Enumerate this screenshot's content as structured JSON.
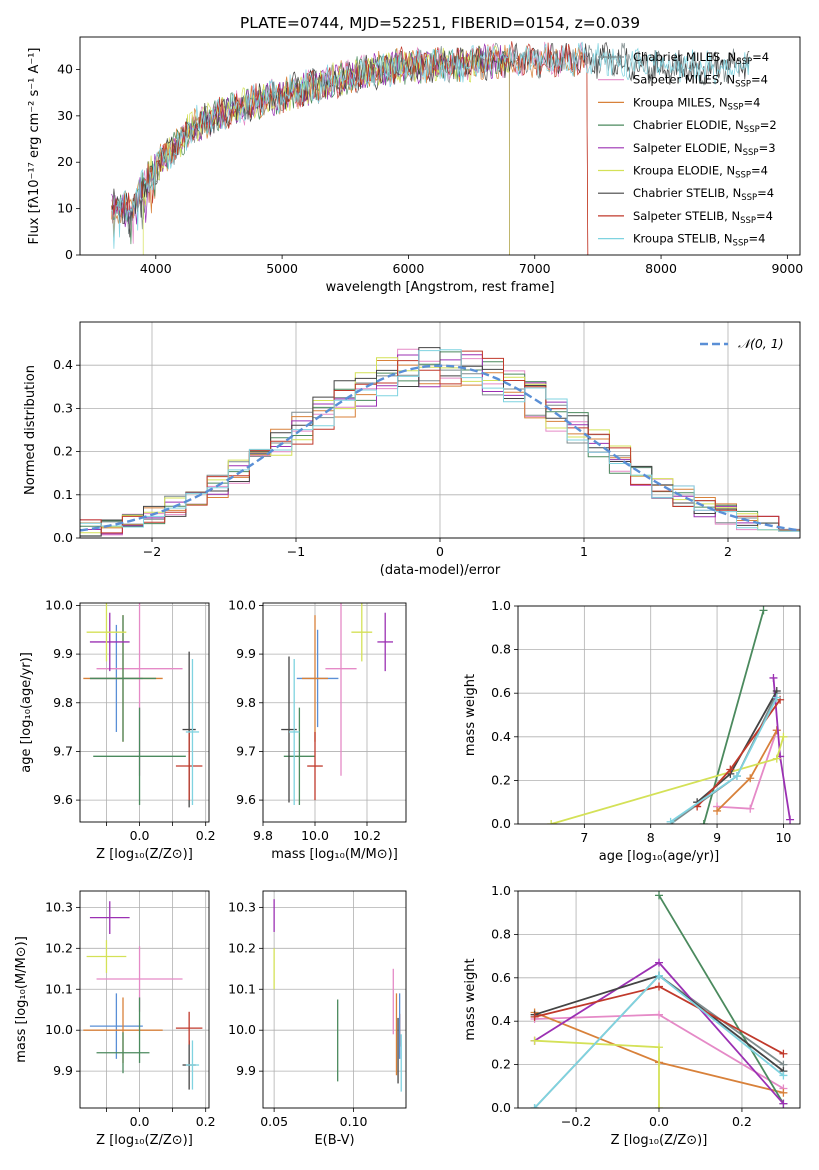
{
  "figure": {
    "title": "PLATE=0744, MJD=52251, FIBERID=0154, z=0.039"
  },
  "chart_data": [
    {
      "id": "spectrum",
      "type": "line",
      "xlabel": "wavelength [Angstrom, rest frame]",
      "ylabel": "Flux [fλ10⁻¹⁷ erg cm⁻² s⁻¹ A⁻¹]",
      "xlim": [
        3400,
        9100
      ],
      "ylim": [
        0,
        47
      ],
      "xticks": [
        4000,
        5000,
        6000,
        7000,
        8000,
        9000
      ],
      "yticks": [
        0,
        10,
        20,
        30,
        40
      ],
      "legend_position": "right",
      "series": [
        {
          "name": "Chabrier MILES, N_SSP=4",
          "color": "#7f8c8d",
          "start": 3650,
          "end": 8700
        },
        {
          "name": "Salpeter MILES, N_SSP=4",
          "color": "#e58ac7",
          "start": 3650,
          "end": 7420
        },
        {
          "name": "Kroupa MILES, N_SSP=4",
          "color": "#d8813a",
          "start": 3650,
          "end": 7420
        },
        {
          "name": "Chabrier ELODIE, N_SSP=2",
          "color": "#4b8a5e",
          "start": 3650,
          "end": 6800
        },
        {
          "name": "Salpeter ELODIE, N_SSP=3",
          "color": "#9b30b3",
          "start": 3650,
          "end": 6800
        },
        {
          "name": "Kroupa ELODIE, N_SSP=4",
          "color": "#d4e157",
          "start": 3900,
          "end": 6800
        },
        {
          "name": "Chabrier STELIB, N_SSP=4",
          "color": "#444444",
          "start": 3650,
          "end": 8700
        },
        {
          "name": "Salpeter STELIB, N_SSP=4",
          "color": "#c0392b",
          "start": 3650,
          "end": 7420
        },
        {
          "name": "Kroupa STELIB, N_SSP=4",
          "color": "#7fd3e0",
          "start": 3650,
          "end": 8700
        }
      ],
      "continuum": {
        "x": [
          3650,
          3800,
          3950,
          4100,
          4300,
          4500,
          4800,
          5200,
          5600,
          6000,
          6400,
          6800,
          7200,
          7600,
          8000,
          8400,
          8700
        ],
        "y": [
          11,
          10,
          17,
          22,
          28,
          30,
          33,
          36,
          39,
          41,
          41,
          42,
          42,
          42,
          41,
          40,
          41
        ]
      }
    },
    {
      "id": "residuals",
      "type": "step",
      "xlabel": "(data-model)/error",
      "ylabel": "Normed distribution",
      "xlim": [
        -2.5,
        2.5
      ],
      "ylim": [
        0,
        0.5
      ],
      "xticks": [
        -2,
        -1,
        0,
        1,
        2
      ],
      "yticks": [
        0.0,
        0.1,
        0.2,
        0.3,
        0.4
      ],
      "legend_position": "top-right",
      "normal_label": "𝒩(0, 1)",
      "normal_color": "#5a8fd6",
      "bins": 34,
      "series_colors": [
        "#7f8c8d",
        "#e58ac7",
        "#d8813a",
        "#4b8a5e",
        "#9b30b3",
        "#d4e157",
        "#444444",
        "#c0392b",
        "#7fd3e0"
      ]
    },
    {
      "id": "age-vs-Z",
      "type": "scatter",
      "xlabel": "Z [log₁₀(Z/Z⊙)]",
      "ylabel": "age  [log₁₀(age/yr)]",
      "xlim": [
        -0.18,
        0.21
      ],
      "ylim": [
        9.555,
        10.005
      ],
      "xticks": [
        -0.1,
        0.0,
        0.1,
        0.2
      ],
      "xtick_labels": [
        "",
        "0.0",
        "",
        "0.2"
      ],
      "yticks": [
        9.6,
        9.7,
        9.8,
        9.9,
        10.0
      ],
      "points": [
        {
          "x": -0.07,
          "y": 9.85,
          "xerr": 0.08,
          "yerr": 0.11,
          "color": "#5a8fd6"
        },
        {
          "x": 0.0,
          "y": 9.87,
          "xerr": 0.13,
          "yerr": 0.22,
          "color": "#e58ac7"
        },
        {
          "x": -0.05,
          "y": 9.85,
          "xerr": 0.12,
          "yerr": 0.13,
          "color": "#d8813a"
        },
        {
          "x": -0.05,
          "y": 9.85,
          "xerr": 0.1,
          "yerr": 0.13,
          "color": "#4b8a5e"
        },
        {
          "x": 0.0,
          "y": 9.69,
          "xerr": 0.14,
          "yerr": 0.1,
          "color": "#4b8a5e"
        },
        {
          "x": -0.09,
          "y": 9.925,
          "xerr": 0.06,
          "yerr": 0.06,
          "color": "#9b30b3"
        },
        {
          "x": -0.1,
          "y": 9.945,
          "xerr": 0.06,
          "yerr": 0.06,
          "color": "#d4e157"
        },
        {
          "x": 0.15,
          "y": 9.745,
          "xerr": 0.02,
          "yerr": 0.16,
          "color": "#444444"
        },
        {
          "x": 0.15,
          "y": 9.67,
          "xerr": 0.04,
          "yerr": 0.07,
          "color": "#c0392b"
        },
        {
          "x": 0.16,
          "y": 9.74,
          "xerr": 0.02,
          "yerr": 0.15,
          "color": "#7fd3e0"
        }
      ]
    },
    {
      "id": "age-vs-mass",
      "type": "scatter",
      "xlabel": "mass [log₁₀(M/M⊙)]",
      "ylabel": "",
      "xlim": [
        9.8,
        10.35
      ],
      "ylim": [
        9.555,
        10.005
      ],
      "xticks": [
        9.8,
        10.0,
        10.2
      ],
      "xtick_labels": [
        "9.8",
        "10.0",
        "10.2"
      ],
      "yticks": [
        9.6,
        9.7,
        9.8,
        9.9,
        10.0
      ],
      "points": [
        {
          "x": 10.01,
          "y": 9.85,
          "xerr": 0.08,
          "yerr": 0.1,
          "color": "#5a8fd6"
        },
        {
          "x": 10.1,
          "y": 9.87,
          "xerr": 0.06,
          "yerr": 0.22,
          "color": "#e58ac7"
        },
        {
          "x": 10.0,
          "y": 9.85,
          "xerr": 0.05,
          "yerr": 0.13,
          "color": "#d8813a"
        },
        {
          "x": 9.94,
          "y": 9.69,
          "xerr": 0.06,
          "yerr": 0.1,
          "color": "#4b8a5e"
        },
        {
          "x": 10.27,
          "y": 9.925,
          "xerr": 0.03,
          "yerr": 0.06,
          "color": "#9b30b3"
        },
        {
          "x": 10.18,
          "y": 9.945,
          "xerr": 0.04,
          "yerr": 0.06,
          "color": "#d4e157"
        },
        {
          "x": 9.9,
          "y": 9.745,
          "xerr": 0.03,
          "yerr": 0.15,
          "color": "#444444"
        },
        {
          "x": 10.0,
          "y": 9.67,
          "xerr": 0.03,
          "yerr": 0.07,
          "color": "#c0392b"
        },
        {
          "x": 9.92,
          "y": 9.74,
          "xerr": 0.02,
          "yerr": 0.15,
          "color": "#7fd3e0"
        }
      ]
    },
    {
      "id": "mass-weight-vs-age",
      "type": "line",
      "xlabel": "age  [log₁₀(age/yr)]",
      "ylabel": "mass weight",
      "xlim": [
        6.0,
        10.25
      ],
      "ylim": [
        0,
        1.0
      ],
      "xticks": [
        7,
        8,
        9,
        10
      ],
      "yticks": [
        0.0,
        0.2,
        0.4,
        0.6,
        0.8,
        1.0
      ],
      "series": [
        {
          "color": "#7f8c8d",
          "x": [
            8.3,
            9.3,
            9.9
          ],
          "y": [
            0.0,
            0.22,
            0.6
          ]
        },
        {
          "color": "#e58ac7",
          "x": [
            9.0,
            9.5,
            9.9
          ],
          "y": [
            0.08,
            0.07,
            0.43
          ]
        },
        {
          "color": "#d8813a",
          "x": [
            9.0,
            9.5,
            9.9
          ],
          "y": [
            0.06,
            0.21,
            0.43
          ]
        },
        {
          "color": "#4b8a5e",
          "x": [
            8.8,
            9.7
          ],
          "y": [
            0.0,
            0.98
          ]
        },
        {
          "color": "#9b30b3",
          "x": [
            9.85,
            9.95,
            10.1
          ],
          "y": [
            0.67,
            0.31,
            0.02
          ]
        },
        {
          "color": "#d4e157",
          "x": [
            6.5,
            9.9,
            10.0
          ],
          "y": [
            0.0,
            0.3,
            0.4
          ]
        },
        {
          "color": "#444444",
          "x": [
            8.7,
            9.2,
            9.9
          ],
          "y": [
            0.1,
            0.23,
            0.61
          ]
        },
        {
          "color": "#c0392b",
          "x": [
            8.7,
            9.2,
            9.95
          ],
          "y": [
            0.08,
            0.25,
            0.57
          ]
        },
        {
          "color": "#7fd3e0",
          "x": [
            8.3,
            9.3,
            9.9
          ],
          "y": [
            0.01,
            0.22,
            0.58
          ]
        }
      ]
    },
    {
      "id": "mass-vs-Z",
      "type": "scatter",
      "xlabel": "Z [log₁₀(Z/Z⊙)]",
      "ylabel": "mass [log₁₀(M/M⊙)]",
      "xlim": [
        -0.18,
        0.21
      ],
      "ylim": [
        9.81,
        10.34
      ],
      "xticks": [
        -0.1,
        0.0,
        0.1,
        0.2
      ],
      "xtick_labels": [
        "",
        "0.0",
        "",
        "0.2"
      ],
      "yticks": [
        9.9,
        10.0,
        10.1,
        10.2,
        10.3
      ],
      "points": [
        {
          "x": -0.07,
          "y": 10.01,
          "xerr": 0.08,
          "yerr": 0.08,
          "color": "#5a8fd6"
        },
        {
          "x": 0.0,
          "y": 10.125,
          "xerr": 0.13,
          "yerr": 0.08,
          "color": "#e58ac7"
        },
        {
          "x": -0.05,
          "y": 10.0,
          "xerr": 0.12,
          "yerr": 0.08,
          "color": "#d8813a"
        },
        {
          "x": -0.05,
          "y": 9.945,
          "xerr": 0.08,
          "yerr": 0.05,
          "color": "#4b8a5e"
        },
        {
          "x": 0.0,
          "y": 10.0,
          "xerr": 0.0,
          "yerr": 0.08,
          "color": "#4b8a5e"
        },
        {
          "x": -0.09,
          "y": 10.275,
          "xerr": 0.06,
          "yerr": 0.04,
          "color": "#9b30b3"
        },
        {
          "x": -0.1,
          "y": 10.18,
          "xerr": 0.06,
          "yerr": 0.04,
          "color": "#d4e157"
        },
        {
          "x": 0.15,
          "y": 9.915,
          "xerr": 0.02,
          "yerr": 0.06,
          "color": "#444444"
        },
        {
          "x": 0.15,
          "y": 10.005,
          "xerr": 0.04,
          "yerr": 0.04,
          "color": "#c0392b"
        },
        {
          "x": 0.16,
          "y": 9.915,
          "xerr": 0.02,
          "yerr": 0.06,
          "color": "#7fd3e0"
        }
      ]
    },
    {
      "id": "mass-vs-EBV",
      "type": "scatter",
      "xlabel": "E(B-V)",
      "ylabel": "",
      "xlim": [
        0.043,
        0.133
      ],
      "ylim": [
        9.81,
        10.34
      ],
      "xticks": [
        0.05,
        0.1
      ],
      "xtick_labels": [
        "0.05",
        "0.10"
      ],
      "yticks": [
        9.9,
        10.0,
        10.1,
        10.2,
        10.3
      ],
      "points": [
        {
          "x": 0.05,
          "y": 10.28,
          "xerr": 0,
          "yerr": 0.04,
          "color": "#9b30b3"
        },
        {
          "x": 0.05,
          "y": 10.15,
          "xerr": 0,
          "yerr": 0.05,
          "color": "#d4e157"
        },
        {
          "x": 0.09,
          "y": 9.975,
          "xerr": 0,
          "yerr": 0.1,
          "color": "#4b8a5e"
        },
        {
          "x": 0.125,
          "y": 10.07,
          "xerr": 0,
          "yerr": 0.08,
          "color": "#e58ac7"
        },
        {
          "x": 0.127,
          "y": 9.99,
          "xerr": 0,
          "yerr": 0.1,
          "color": "#d8813a"
        },
        {
          "x": 0.128,
          "y": 9.95,
          "xerr": 0,
          "yerr": 0.08,
          "color": "#444444"
        },
        {
          "x": 0.129,
          "y": 10.0,
          "xerr": 0,
          "yerr": 0.04,
          "color": "#c0392b"
        },
        {
          "x": 0.129,
          "y": 10.01,
          "xerr": 0,
          "yerr": 0.08,
          "color": "#5a8fd6"
        },
        {
          "x": 0.13,
          "y": 9.92,
          "xerr": 0,
          "yerr": 0.07,
          "color": "#7fd3e0"
        }
      ]
    },
    {
      "id": "mass-weight-vs-Z",
      "type": "line",
      "xlabel": "Z [log₁₀(Z/Z⊙)]",
      "ylabel": "mass weight",
      "xlim": [
        -0.34,
        0.34
      ],
      "ylim": [
        0,
        1.0
      ],
      "xticks": [
        -0.2,
        0.0,
        0.2
      ],
      "xtick_labels": [
        "−0.2",
        "0.0",
        "0.2"
      ],
      "yticks": [
        0.0,
        0.2,
        0.4,
        0.6,
        0.8,
        1.0
      ],
      "series": [
        {
          "color": "#7f8c8d",
          "x": [
            -0.3,
            0.0,
            0.3
          ],
          "y": [
            0.0,
            0.61,
            0.2
          ]
        },
        {
          "color": "#e58ac7",
          "x": [
            -0.3,
            0.0,
            0.3
          ],
          "y": [
            0.41,
            0.43,
            0.09
          ]
        },
        {
          "color": "#d8813a",
          "x": [
            -0.3,
            0.0,
            0.3
          ],
          "y": [
            0.44,
            0.21,
            0.07
          ]
        },
        {
          "color": "#4b8a5e",
          "x": [
            0.0,
            0.3
          ],
          "y": [
            0.98,
            0.02
          ]
        },
        {
          "color": "#9b30b3",
          "x": [
            -0.3,
            0.0,
            0.3
          ],
          "y": [
            0.31,
            0.67,
            0.02
          ]
        },
        {
          "color": "#d4e157",
          "x": [
            -0.3,
            0.0,
            0.0
          ],
          "y": [
            0.31,
            0.28,
            0.0
          ]
        },
        {
          "color": "#444444",
          "x": [
            -0.3,
            0.0,
            0.3
          ],
          "y": [
            0.43,
            0.61,
            0.17
          ]
        },
        {
          "color": "#c0392b",
          "x": [
            -0.3,
            0.0,
            0.3
          ],
          "y": [
            0.42,
            0.56,
            0.25
          ]
        },
        {
          "color": "#7fd3e0",
          "x": [
            -0.3,
            0.0,
            0.3
          ],
          "y": [
            0.0,
            0.61,
            0.15
          ]
        }
      ]
    }
  ]
}
